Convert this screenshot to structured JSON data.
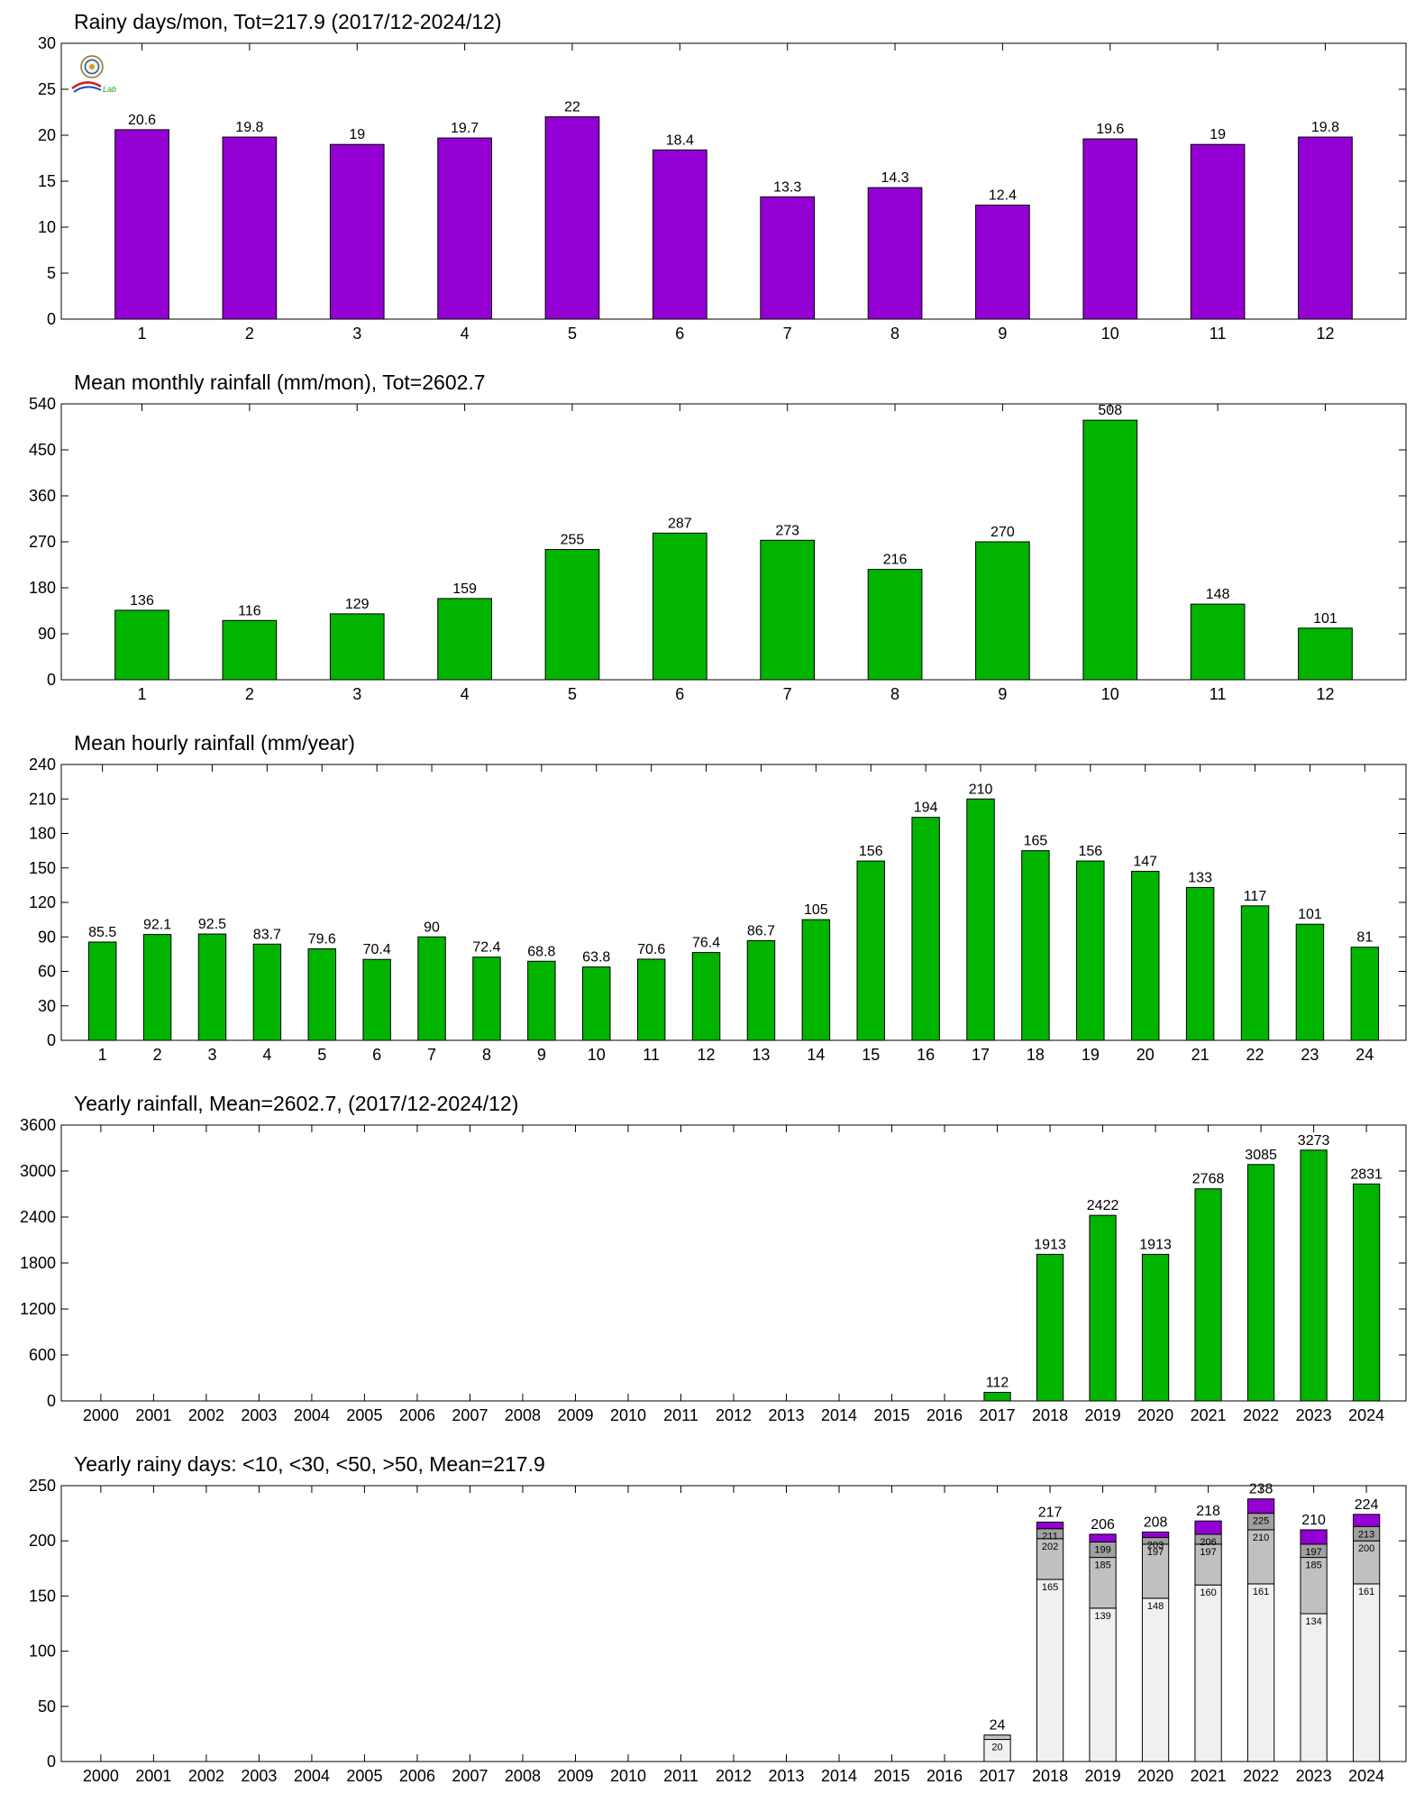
{
  "logo": {
    "icon": "station-seal-icon",
    "text": "Lab"
  },
  "chart_data": [
    {
      "id": "rainy-days-month",
      "type": "bar",
      "title": "Rainy days/mon, Tot=217.9 (2017/12-2024/12)",
      "categories": [
        "1",
        "2",
        "3",
        "4",
        "5",
        "6",
        "7",
        "8",
        "9",
        "10",
        "11",
        "12"
      ],
      "values": [
        20.6,
        19.8,
        19,
        19.7,
        22,
        18.4,
        13.3,
        14.3,
        12.4,
        19.6,
        19,
        19.8
      ],
      "labels": [
        "20.6",
        "19.8",
        "19",
        "19.7",
        "22",
        "18.4",
        "13.3",
        "14.3",
        "12.4",
        "19.6",
        "19",
        "19.8"
      ],
      "ylim": [
        0,
        30
      ],
      "yticks": [
        0,
        5,
        10,
        15,
        20,
        25,
        30
      ],
      "color": "#9400d3"
    },
    {
      "id": "mean-monthly-rainfall",
      "type": "bar",
      "title": "Mean monthly rainfall (mm/mon), Tot=2602.7",
      "categories": [
        "1",
        "2",
        "3",
        "4",
        "5",
        "6",
        "7",
        "8",
        "9",
        "10",
        "11",
        "12"
      ],
      "values": [
        136,
        116,
        129,
        159,
        255,
        287,
        273,
        216,
        270,
        508,
        148,
        101
      ],
      "labels": [
        "136",
        "116",
        "129",
        "159",
        "255",
        "287",
        "273",
        "216",
        "270",
        "508",
        "148",
        "101"
      ],
      "ylim": [
        0,
        540
      ],
      "yticks": [
        0,
        90,
        180,
        270,
        360,
        450,
        540
      ],
      "color": "#00b400"
    },
    {
      "id": "mean-hourly-rainfall",
      "type": "bar",
      "title": "Mean hourly rainfall (mm/year)",
      "categories": [
        "1",
        "2",
        "3",
        "4",
        "5",
        "6",
        "7",
        "8",
        "9",
        "10",
        "11",
        "12",
        "13",
        "14",
        "15",
        "16",
        "17",
        "18",
        "19",
        "20",
        "21",
        "22",
        "23",
        "24"
      ],
      "values": [
        85.5,
        92.1,
        92.5,
        83.7,
        79.6,
        70.4,
        90,
        72.4,
        68.8,
        63.8,
        70.6,
        76.4,
        86.7,
        105,
        156,
        194,
        210,
        165,
        156,
        147,
        133,
        117,
        101,
        81
      ],
      "labels": [
        "85.5",
        "92.1",
        "92.5",
        "83.7",
        "79.6",
        "70.4",
        "90",
        "72.4",
        "68.8",
        "63.8",
        "70.6",
        "76.4",
        "86.7",
        "105",
        "156",
        "194",
        "210",
        "165",
        "156",
        "147",
        "133",
        "117",
        "101",
        "81"
      ],
      "ylim": [
        0,
        240
      ],
      "yticks": [
        0,
        30,
        60,
        90,
        120,
        150,
        180,
        210,
        240
      ],
      "color": "#00b400"
    },
    {
      "id": "yearly-rainfall",
      "type": "bar",
      "title": "Yearly rainfall, Mean=2602.7, (2017/12-2024/12)",
      "categories": [
        "2000",
        "2001",
        "2002",
        "2003",
        "2004",
        "2005",
        "2006",
        "2007",
        "2008",
        "2009",
        "2010",
        "2011",
        "2012",
        "2013",
        "2014",
        "2015",
        "2016",
        "2017",
        "2018",
        "2019",
        "2020",
        "2021",
        "2022",
        "2023",
        "2024"
      ],
      "values": [
        null,
        null,
        null,
        null,
        null,
        null,
        null,
        null,
        null,
        null,
        null,
        null,
        null,
        null,
        null,
        null,
        null,
        112,
        1913,
        2422,
        1913,
        2768,
        3085,
        3273,
        2831
      ],
      "labels": [
        "",
        "",
        "",
        "",
        "",
        "",
        "",
        "",
        "",
        "",
        "",
        "",
        "",
        "",
        "",
        "",
        "",
        "112",
        "1913",
        "2422",
        "1913",
        "2768",
        "3085",
        "3273",
        "2831"
      ],
      "ylim": [
        0,
        3600
      ],
      "yticks": [
        0,
        600,
        1200,
        1800,
        2400,
        3000,
        3600
      ],
      "color": "#00b400"
    },
    {
      "id": "yearly-rainy-days",
      "type": "stacked-bar",
      "title": "Yearly rainy days: <10, <30, <50, >50, Mean=217.9",
      "categories": [
        "2000",
        "2001",
        "2002",
        "2003",
        "2004",
        "2005",
        "2006",
        "2007",
        "2008",
        "2009",
        "2010",
        "2011",
        "2012",
        "2013",
        "2014",
        "2015",
        "2016",
        "2017",
        "2018",
        "2019",
        "2020",
        "2021",
        "2022",
        "2023",
        "2024"
      ],
      "cumulative": [
        null,
        null,
        null,
        null,
        null,
        null,
        null,
        null,
        null,
        null,
        null,
        null,
        null,
        null,
        null,
        null,
        null,
        [
          20,
          24,
          24,
          24
        ],
        [
          165,
          202,
          211,
          217
        ],
        [
          139,
          185,
          199,
          206
        ],
        [
          148,
          197,
          203,
          208
        ],
        [
          160,
          197,
          206,
          218
        ],
        [
          161,
          210,
          225,
          238
        ],
        [
          134,
          185,
          197,
          210
        ],
        [
          161,
          200,
          213,
          224
        ]
      ],
      "inner_labels": [
        null,
        null,
        null,
        null,
        null,
        null,
        null,
        null,
        null,
        null,
        null,
        null,
        null,
        null,
        null,
        null,
        null,
        [
          "20",
          "",
          "",
          ""
        ],
        [
          "165",
          "202",
          "211",
          ""
        ],
        [
          "139",
          "185",
          "199",
          ""
        ],
        [
          "148",
          "197",
          "203",
          ""
        ],
        [
          "160",
          "197",
          "206",
          ""
        ],
        [
          "161",
          "210",
          "225",
          ""
        ],
        [
          "134",
          "185",
          "197",
          ""
        ],
        [
          "161",
          "200",
          "213",
          ""
        ]
      ],
      "totals": [
        "",
        "",
        "",
        "",
        "",
        "",
        "",
        "",
        "",
        "",
        "",
        "",
        "",
        "",
        "",
        "",
        "",
        "24",
        "217",
        "206",
        "208",
        "218",
        "238",
        "210",
        "224"
      ],
      "ylim": [
        0,
        250
      ],
      "yticks": [
        0,
        50,
        100,
        150,
        200,
        250
      ],
      "segment_colors": [
        "#f0f0f0",
        "#c0c0c0",
        "#a0a0a0",
        "#9400d3"
      ]
    }
  ]
}
